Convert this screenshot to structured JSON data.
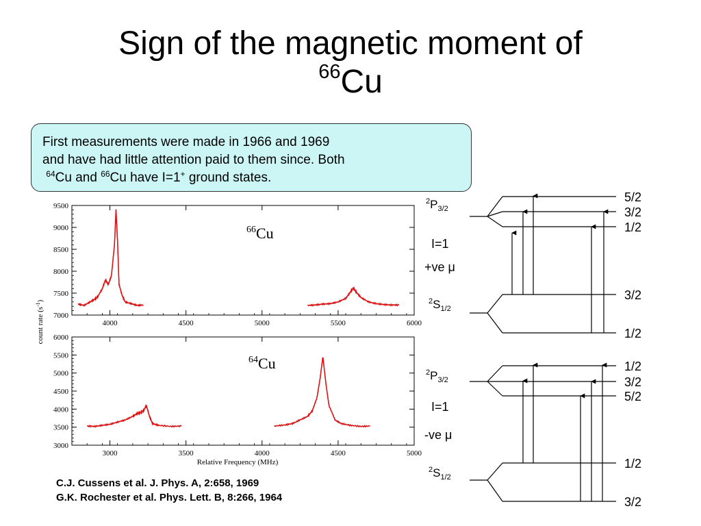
{
  "slide": {
    "title_line1": "Sign of the magnetic moment of",
    "title_mass": "66",
    "title_element": "Cu",
    "callout": {
      "line1": "First measurements were made in 1966 and 1969",
      "line2": "and have had little attention paid to them since. Both",
      "line3_mass_a": "64",
      "line3_text_a": "Cu and ",
      "line3_mass_b": "66",
      "line3_text_b": "Cu have I=1",
      "line3_sup": "+",
      "line3_text_c": " ground states."
    },
    "references": [
      "C.J. Cussens et al. J. Phys. A, 2:658, 1969",
      "G.K. Rochester et al. Phys. Lett. B, 8:266, 1964"
    ]
  },
  "chart_data": [
    {
      "type": "line",
      "label_mass": "66",
      "label_element": "Cu",
      "ylabel": "count rate (s",
      "ylabel_sup": "-1",
      "ylabel_end": ")",
      "xlim": [
        3750,
        6000
      ],
      "ylim": [
        7000,
        9500
      ],
      "xticks": [
        "4000",
        "4500",
        "5000",
        "5500",
        "6000"
      ],
      "yticks": [
        "7000",
        "7500",
        "8000",
        "8500",
        "9000",
        "9500"
      ],
      "color": "#dd1111",
      "series": [
        {
          "x": [
            3790,
            3830,
            3870,
            3900,
            3920,
            3950,
            3970,
            3990,
            4010,
            4030,
            4040,
            4050,
            4060,
            4080,
            4100,
            4140,
            4180,
            4220
          ],
          "y": [
            7250,
            7220,
            7300,
            7360,
            7420,
            7600,
            7800,
            7700,
            7900,
            8600,
            9400,
            8700,
            7700,
            7450,
            7300,
            7260,
            7220,
            7230
          ]
        },
        {
          "x": [
            5300,
            5350,
            5400,
            5450,
            5500,
            5550,
            5580,
            5600,
            5620,
            5650,
            5700,
            5750,
            5800,
            5850,
            5900
          ],
          "y": [
            7220,
            7230,
            7250,
            7260,
            7300,
            7380,
            7520,
            7620,
            7520,
            7400,
            7300,
            7260,
            7240,
            7230,
            7230
          ]
        }
      ]
    },
    {
      "type": "line",
      "label_mass": "64",
      "label_element": "Cu",
      "xlabel": "Relative Frequency (MHz)",
      "xlim": [
        2750,
        5000
      ],
      "ylim": [
        3000,
        6000
      ],
      "xticks": [
        "3000",
        "3500",
        "4000",
        "4500",
        "5000"
      ],
      "yticks": [
        "3000",
        "3500",
        "4000",
        "4500",
        "5000",
        "5500",
        "6000"
      ],
      "color": "#dd1111",
      "series": [
        {
          "x": [
            2850,
            2900,
            2950,
            3000,
            3050,
            3100,
            3150,
            3180,
            3200,
            3220,
            3240,
            3260,
            3280,
            3320,
            3400,
            3470
          ],
          "y": [
            3530,
            3520,
            3550,
            3580,
            3640,
            3700,
            3800,
            3880,
            3900,
            3950,
            4100,
            3800,
            3600,
            3550,
            3520,
            3530
          ]
        },
        {
          "x": [
            4080,
            4150,
            4200,
            4250,
            4300,
            4330,
            4360,
            4380,
            4400,
            4420,
            4440,
            4480,
            4520,
            4580,
            4650,
            4710
          ],
          "y": [
            3530,
            3560,
            3600,
            3700,
            3800,
            3950,
            4300,
            4800,
            5450,
            4700,
            4100,
            3700,
            3600,
            3550,
            3520,
            3530
          ]
        }
      ]
    }
  ],
  "levels": {
    "upper": {
      "p_label": "P",
      "p_sup": "2",
      "p_sub": "3/2",
      "p_levels": [
        "5/2",
        "3/2",
        "1/2"
      ],
      "i_text": "I=1",
      "mu_text": "+ve μ",
      "s_label": "S",
      "s_sup": "2",
      "s_sub": "1/2",
      "s_levels": [
        "3/2",
        "1/2"
      ]
    },
    "lower": {
      "p_label": "P",
      "p_sup": "2",
      "p_sub": "3/2",
      "p_levels": [
        "1/2",
        "3/2",
        "5/2"
      ],
      "i_text": "I=1",
      "mu_text": "-ve μ",
      "s_label": "S",
      "s_sup": "2",
      "s_sub": "1/2",
      "s_levels": [
        "1/2",
        "3/2"
      ]
    }
  }
}
